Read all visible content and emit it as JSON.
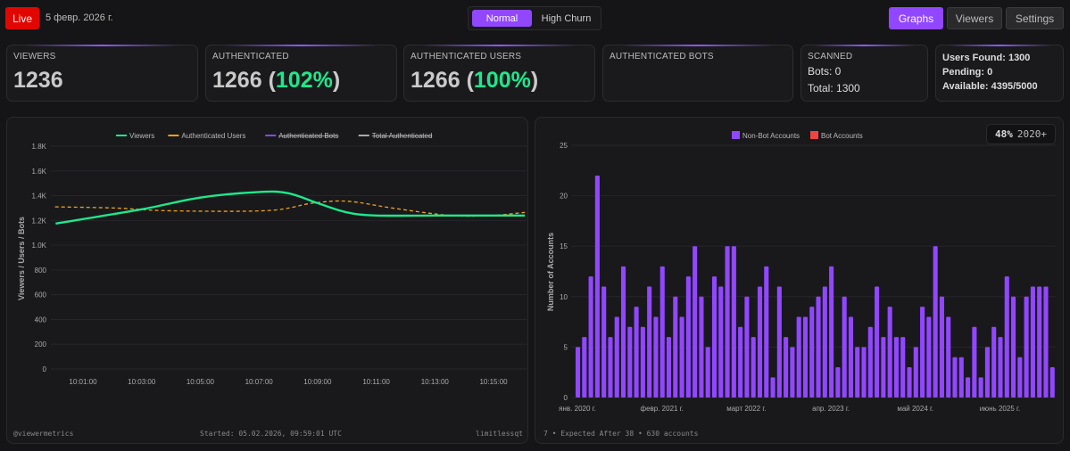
{
  "header": {
    "live_label": "Live",
    "date": "5 февр. 2026 г.",
    "modes": [
      "Normal",
      "High Churn"
    ],
    "active_mode": "Normal",
    "nav": [
      "Graphs",
      "Viewers",
      "Settings"
    ],
    "active_nav": "Graphs"
  },
  "cards": {
    "viewers": {
      "label": "VIEWERS",
      "value": "1236"
    },
    "authenticated": {
      "label": "AUTHENTICATED",
      "value": "1266",
      "pct": "102%"
    },
    "authenticated_users": {
      "label": "AUTHENTICATED USERS",
      "value": "1266",
      "pct": "100%"
    },
    "authenticated_bots": {
      "label": "AUTHENTICATED BOTS"
    },
    "scanned": {
      "label": "SCANNED",
      "bots": "Bots: 0",
      "total": "Total: 1300"
    },
    "status": {
      "users_found": "Users Found: 1300",
      "pending": "Pending: 0",
      "available": "Available: 4395/5000"
    }
  },
  "colors": {
    "accent": "#9147ff",
    "viewers": "#1ee88a",
    "auth_users": "#f0a020",
    "auth_bots": "#7b4fe0",
    "total_auth": "#aaaaaa",
    "bot_accounts": "#ef4444",
    "live": "#e10600"
  },
  "left_footer": {
    "handle": "@viewermetrics",
    "started": "Started: 05.02.2026, 09:59:01 UTC",
    "user": "limitlessqt"
  },
  "right_footer": {
    "summary": "7 • Expected After 38 • 630 accounts",
    "badge_pct": "48%",
    "badge_label": "2020+"
  },
  "chart_data": [
    {
      "type": "line",
      "ylabel": "Viewers / Users / Bots",
      "ylim": [
        0,
        1800
      ],
      "yticks": [
        "0",
        "200",
        "400",
        "600",
        "800",
        "1.0K",
        "1.2K",
        "1.4K",
        "1.6K",
        "1.8K"
      ],
      "xticks": [
        "10:01:00",
        "10:03:00",
        "10:05:00",
        "10:07:00",
        "10:09:00",
        "10:11:00",
        "10:13:00",
        "10:15:00"
      ],
      "grid": true,
      "legend": "top",
      "legend_items": [
        {
          "name": "Viewers",
          "hidden": false
        },
        {
          "name": "Authenticated Users",
          "hidden": false
        },
        {
          "name": "Authenticated Bots",
          "hidden": true
        },
        {
          "name": "Total Authenticated",
          "hidden": true
        }
      ],
      "series": [
        {
          "name": "Viewers",
          "style": "solid",
          "points": [
            [
              "10:00:04",
              1175
            ],
            [
              "10:03:00",
              1290
            ],
            [
              "10:05:00",
              1385
            ],
            [
              "10:07:00",
              1430
            ],
            [
              "10:08:00",
              1420
            ],
            [
              "10:09:00",
              1340
            ],
            [
              "10:10:00",
              1265
            ],
            [
              "10:11:00",
              1240
            ],
            [
              "10:13:00",
              1240
            ],
            [
              "10:15:00",
              1240
            ],
            [
              "10:16:04",
              1240
            ]
          ]
        },
        {
          "name": "Authenticated Users",
          "style": "dashed",
          "points": [
            [
              "10:00:03",
              1310
            ],
            [
              "10:02:08",
              1300
            ],
            [
              "10:04:00",
              1278
            ],
            [
              "10:07:18",
              1280
            ],
            [
              "10:08:50",
              1340
            ],
            [
              "10:10:02",
              1355
            ],
            [
              "10:11:33",
              1300
            ],
            [
              "10:13:32",
              1240
            ],
            [
              "10:14:55",
              1240
            ],
            [
              "10:16:04",
              1265
            ]
          ]
        }
      ]
    },
    {
      "type": "bar",
      "ylabel": "Number of Accounts",
      "ylim": [
        0,
        25
      ],
      "yticks": [
        "0",
        "5",
        "10",
        "15",
        "20",
        "25"
      ],
      "grid": true,
      "legend": "top",
      "legend_items": [
        "Non-Bot Accounts",
        "Bot Accounts"
      ],
      "xticks": [
        {
          "index": 0,
          "label": "янв. 2020 г."
        },
        {
          "index": 13,
          "label": "февр. 2021 г."
        },
        {
          "index": 26,
          "label": "март 2022 г."
        },
        {
          "index": 39,
          "label": "апр. 2023 г."
        },
        {
          "index": 52,
          "label": "май 2024 г."
        },
        {
          "index": 65,
          "label": "июнь 2025 г."
        }
      ],
      "series": [
        {
          "name": "Non-Bot Accounts",
          "values": [
            5,
            6,
            12,
            22,
            11,
            6,
            8,
            13,
            7,
            9,
            7,
            11,
            8,
            13,
            6,
            10,
            8,
            12,
            15,
            10,
            5,
            12,
            11,
            15,
            15,
            7,
            10,
            6,
            11,
            13,
            2,
            11,
            6,
            5,
            8,
            8,
            9,
            10,
            11,
            13,
            3,
            10,
            8,
            5,
            5,
            7,
            11,
            6,
            9,
            6,
            6,
            3,
            5,
            9,
            8,
            15,
            10,
            8,
            4,
            4,
            2,
            7,
            2,
            5,
            7,
            6,
            12,
            10,
            4,
            10,
            11,
            11,
            11,
            3
          ]
        },
        {
          "name": "Bot Accounts",
          "values": []
        }
      ]
    }
  ]
}
